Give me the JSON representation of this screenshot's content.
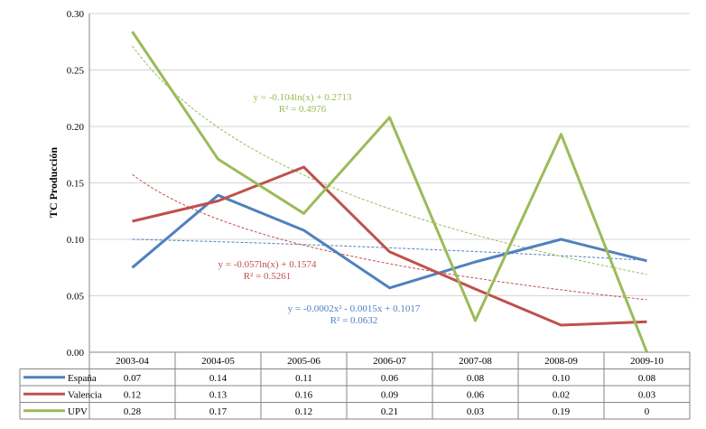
{
  "chart_data": {
    "type": "line",
    "ylabel": "TC Producción",
    "ylim": [
      0,
      0.3
    ],
    "yticks": [
      "0.00",
      "0.05",
      "0.10",
      "0.15",
      "0.20",
      "0.25",
      "0.30"
    ],
    "grid": true,
    "categories": [
      "2003-04",
      "2004-05",
      "2005-06",
      "2006-07",
      "2007-08",
      "2008-09",
      "2009-10"
    ],
    "series": [
      {
        "name": "España",
        "color": "#4f81bd",
        "values": [
          0.075,
          0.139,
          0.108,
          0.057,
          0.08,
          0.1,
          0.081
        ],
        "table_values": [
          "0.07",
          "0.14",
          "0.11",
          "0.06",
          "0.08",
          "0.10",
          "0.08"
        ],
        "trendline": {
          "type": "polynomial",
          "a": -0.0002,
          "b": -0.0015,
          "c": 0.1017
        },
        "equation": "y = -0.0002x² - 0.0015x + 0.1017",
        "r2": "R² = 0.0632"
      },
      {
        "name": "Valencia",
        "color": "#c0504d",
        "values": [
          0.116,
          0.134,
          0.164,
          0.089,
          0.056,
          0.024,
          0.027
        ],
        "table_values": [
          "0.12",
          "0.13",
          "0.16",
          "0.09",
          "0.06",
          "0.02",
          "0.03"
        ],
        "trendline": {
          "type": "logarithmic",
          "a": -0.057,
          "b": 0.1574
        },
        "equation": "y = -0.057ln(x) + 0.1574",
        "r2": "R² = 0.5261"
      },
      {
        "name": "UPV",
        "color": "#9bbb59",
        "values": [
          0.284,
          0.171,
          0.123,
          0.208,
          0.028,
          0.193,
          0.0
        ],
        "table_values": [
          "0.28",
          "0.17",
          "0.12",
          "0.21",
          "0.03",
          "0.19",
          "0"
        ],
        "trendline": {
          "type": "logarithmic",
          "a": -0.104,
          "b": 0.2713
        },
        "equation": "y = -0.104ln(x) + 0.2713",
        "r2": "R² = 0.4976"
      }
    ]
  }
}
